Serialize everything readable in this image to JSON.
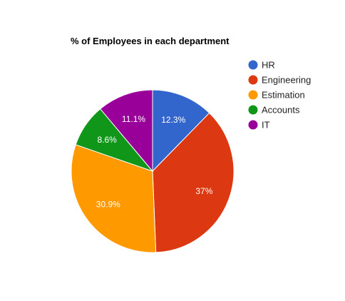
{
  "chart_data": {
    "type": "pie",
    "title": "% of Employees in each department",
    "legend_position": "right",
    "slices": [
      {
        "name": "HR",
        "value": 12.3,
        "label": "12.3%",
        "color": "#3366cc"
      },
      {
        "name": "Engineering",
        "value": 37,
        "label": "37%",
        "color": "#dc3912"
      },
      {
        "name": "Estimation",
        "value": 30.9,
        "label": "30.9%",
        "color": "#ff9900"
      },
      {
        "name": "Accounts",
        "value": 8.6,
        "label": "8.6%",
        "color": "#109618"
      },
      {
        "name": "IT",
        "value": 11.1,
        "label": "11.1%",
        "color": "#990099"
      }
    ]
  }
}
